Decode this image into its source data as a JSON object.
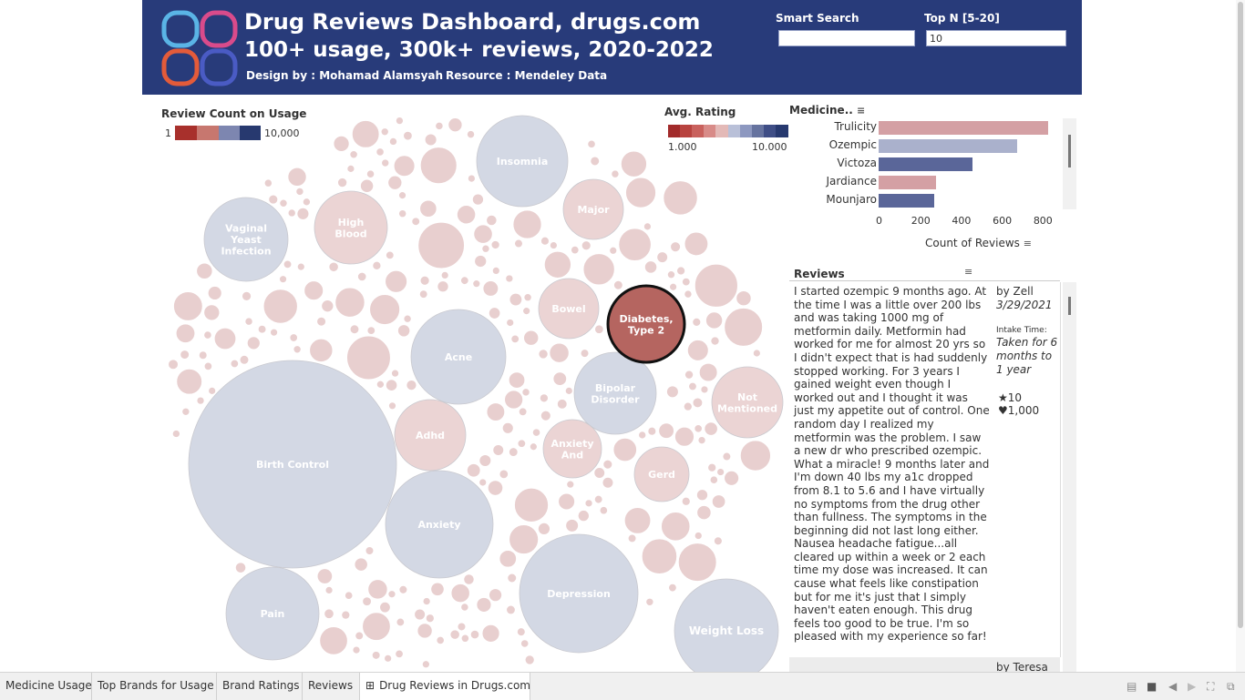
{
  "header": {
    "title_line1": "Drug Reviews Dashboard, drugs.com",
    "title_line2": "100+ usage, 300k+ reviews, 2020-2022",
    "design_by": "Design by : Mohamad Alamsyah",
    "resource": "Resource  : Mendeley Data",
    "smart_search_label": "Smart Search",
    "smart_search_value": "",
    "top_n_label": "Top N [5-20]",
    "top_n_value": "10"
  },
  "legend_count": {
    "title": "Review Count on Usage",
    "min": "1",
    "max": "10,000"
  },
  "legend_rating": {
    "title": "Avg. Rating",
    "min": "1.000",
    "max": "10.000"
  },
  "bubble_chart": {
    "bubbles": [
      {
        "label_lines": [
          "Birth Control"
        ],
        "tone": "blue"
      },
      {
        "label_lines": [
          "Depression"
        ],
        "tone": "blue"
      },
      {
        "label_lines": [
          "Anxiety"
        ],
        "tone": "blue"
      },
      {
        "label_lines": [
          "Weight Loss"
        ],
        "tone": "blue"
      },
      {
        "label_lines": [
          "Insomnia"
        ],
        "tone": "blue"
      },
      {
        "label_lines": [
          "Acne"
        ],
        "tone": "blue"
      },
      {
        "label_lines": [
          "Pain"
        ],
        "tone": "blue"
      },
      {
        "label_lines": [
          "Vaginal",
          "Yeast",
          "Infection"
        ],
        "tone": "blue"
      },
      {
        "label_lines": [
          "Bipolar",
          "Disorder"
        ],
        "tone": "blue"
      },
      {
        "label_lines": [
          "Not",
          "Mentioned"
        ],
        "tone": "red"
      },
      {
        "label_lines": [
          "Diabetes,",
          "Type 2"
        ],
        "tone": "selected"
      },
      {
        "label_lines": [
          "High",
          "Blood"
        ],
        "tone": "red"
      },
      {
        "label_lines": [
          "Major"
        ],
        "tone": "red"
      },
      {
        "label_lines": [
          "Bowel"
        ],
        "tone": "red"
      },
      {
        "label_lines": [
          "Adhd"
        ],
        "tone": "red"
      },
      {
        "label_lines": [
          "Anxiety",
          "And"
        ],
        "tone": "red"
      },
      {
        "label_lines": [
          "Gerd"
        ],
        "tone": "red"
      }
    ],
    "colors": {
      "blue": "#d3d8e4",
      "red": "#ebd4d4",
      "selected": "#b56560",
      "small": "#e8cfcf"
    }
  },
  "bar_chart": {
    "title": "Medicine..",
    "xlabel": "Count of Reviews",
    "ticks": [
      "0",
      "200",
      "400",
      "600",
      "800"
    ]
  },
  "chart_data": {
    "type": "bar",
    "orientation": "horizontal",
    "categories": [
      "Trulicity",
      "Ozempic",
      "Victoza",
      "Jardiance",
      "Mounjaro"
    ],
    "values": [
      830,
      680,
      460,
      280,
      275
    ],
    "bar_colors": [
      "#d4a0a4",
      "#aab1cc",
      "#5a6699",
      "#d4a0a4",
      "#5a6699"
    ],
    "xlabel": "Count of Reviews",
    "xlim": [
      0,
      850
    ]
  },
  "reviews": {
    "title": "Reviews",
    "text": "I started ozempic 9 months ago. At the time I was a little over 200 lbs and was taking 1000 mg of metformin daily. Metformin had worked for me for almost 20 yrs so I didn't expect that is had suddenly stopped working. For 3 years I gained weight even though I worked out and I thought it was just my appetite out of control. One random day I realized my metformin was the problem. I saw a new dr who prescribed ozempic. What a miracle! 9 months later and I'm down 40 lbs my a1c dropped from 8.1 to 5.6 and I have virtually no symptoms from the drug other than fullness. The symptoms in the beginning did not last long either. Nausea headache fatigue...all cleared up within a week or 2 each time my dose was increased. It can cause what feels like constipation but for me it's just that I simply haven't eaten enough. This drug feels too good to be true. I'm so pleased with my experience so far!",
    "author": "by Zell",
    "date": "3/29/2021",
    "intake_label": "Intake Time:",
    "intake_value": "Taken for 6 months to 1 year",
    "rating": "10",
    "likes": "1,000",
    "next_author": "by Teresa"
  },
  "tabs": [
    "Medicine Usage",
    "Top Brands for Usage",
    "Brand Ratings",
    "Reviews",
    "Drug Reviews in Drugs.com"
  ],
  "active_tab": "Drug Reviews in Drugs.com"
}
